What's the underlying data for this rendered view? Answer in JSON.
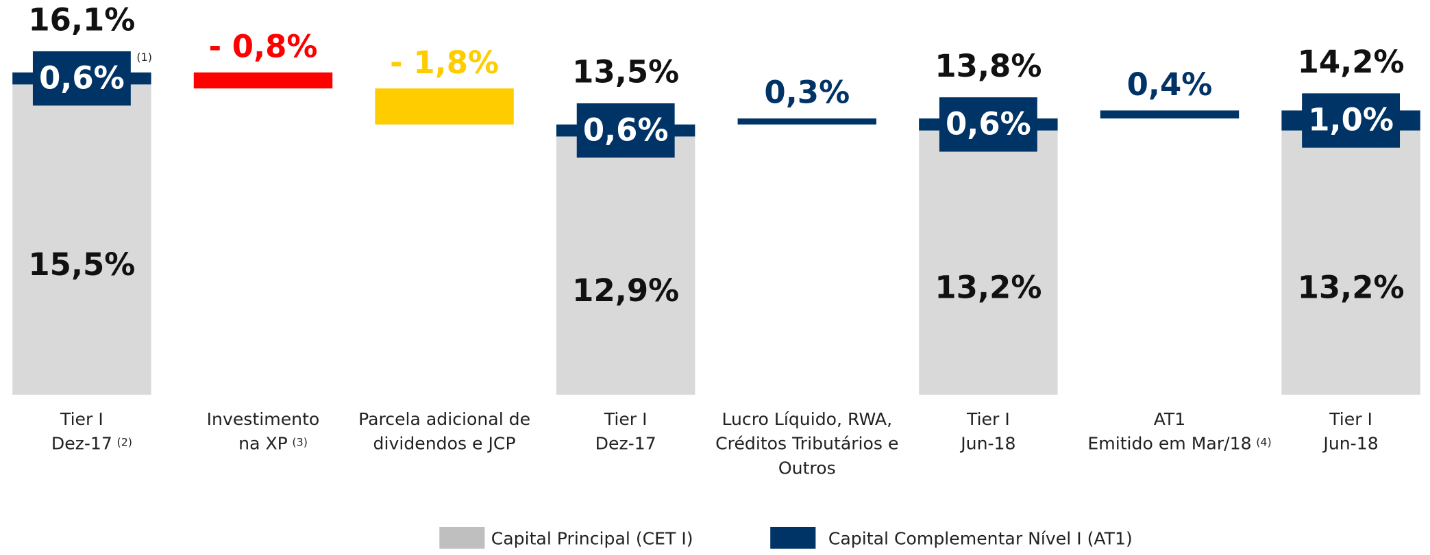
{
  "chart_data": {
    "type": "waterfall",
    "categories": [
      [
        "Tier I",
        "Dez-17"
      ],
      [
        "Investimento",
        "na XP"
      ],
      [
        "Parcela adicional de",
        "dividendos e JCP"
      ],
      [
        "Tier I",
        "Dez-17"
      ],
      [
        "Lucro Líquido, RWA,",
        "Créditos Tributários e",
        "Outros"
      ],
      [
        "Tier I",
        "Jun-18"
      ],
      [
        "AT1",
        "Emitido em Mar/18"
      ],
      [
        "Tier I",
        "Jun-18"
      ]
    ],
    "category_notes": [
      "(2)",
      "(3)",
      null,
      null,
      null,
      null,
      "(4)",
      null
    ],
    "annotations": [
      {
        "text": "(1)",
        "category": 0
      }
    ],
    "series": [
      {
        "name": "Capital Principal (CET I)",
        "color": "#d9d9d9",
        "values": [
          15.5,
          null,
          null,
          12.9,
          null,
          13.2,
          null,
          13.2
        ],
        "value_labels": [
          "15,5%",
          null,
          null,
          "12,9%",
          null,
          "13,2%",
          null,
          "13,2%"
        ]
      },
      {
        "name": "Capital Complementar Nível I (AT1)",
        "color": "#003366",
        "values": [
          0.6,
          null,
          null,
          0.6,
          null,
          0.6,
          null,
          1.0
        ],
        "value_labels": [
          "0,6%",
          null,
          null,
          "0,6%",
          null,
          "0,6%",
          null,
          "1,0%"
        ]
      }
    ],
    "changes": {
      "values": [
        null,
        -0.8,
        -1.8,
        null,
        0.3,
        null,
        0.4,
        null
      ],
      "value_labels": [
        null,
        "- 0,8%",
        "- 1,8%",
        null,
        "0,3%",
        null,
        "0,4%",
        null
      ],
      "colors": [
        null,
        "#ff0000",
        "#ffcc00",
        null,
        "#003366",
        null,
        "#003366",
        null
      ]
    },
    "totals": {
      "values": [
        16.1,
        null,
        null,
        13.5,
        null,
        13.8,
        null,
        14.2
      ],
      "value_labels": [
        "16,1%",
        null,
        null,
        "13,5%",
        null,
        "13,8%",
        null,
        "14,2%"
      ]
    },
    "ylim": [
      0,
      16.1
    ]
  }
}
